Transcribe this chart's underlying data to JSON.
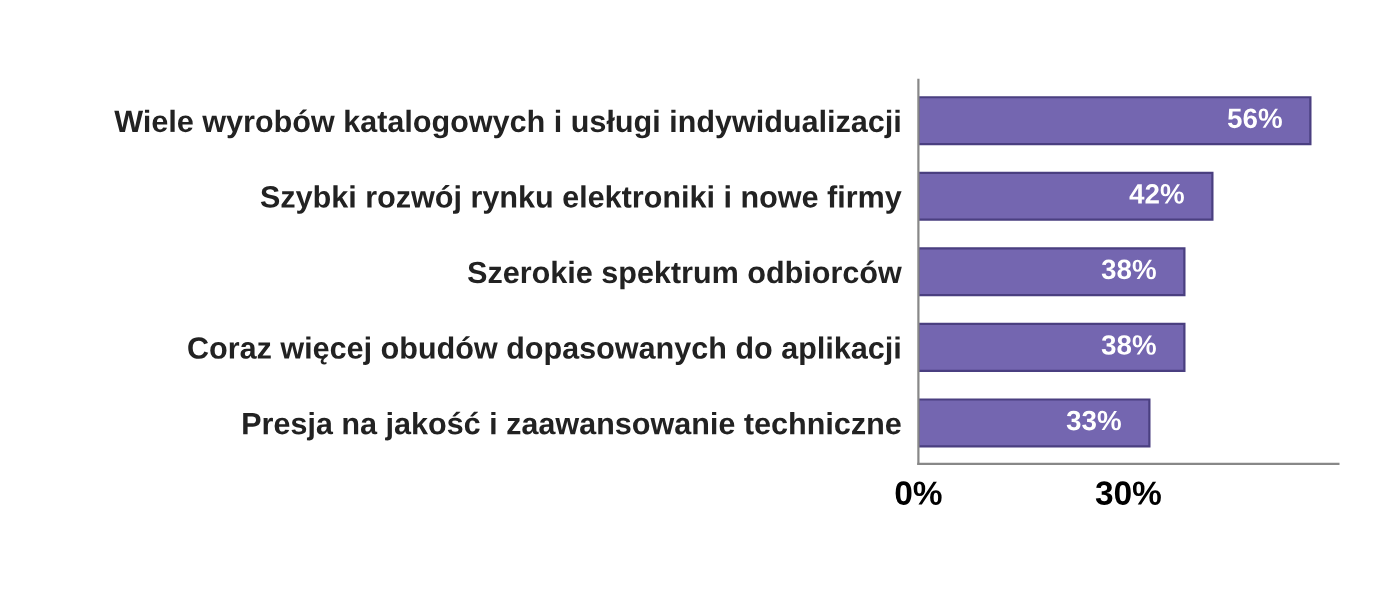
{
  "chart_data": {
    "type": "bar",
    "orientation": "horizontal",
    "categories": [
      "Wiele wyrobów katalogowych i usługi indywidualizacji",
      "Szybki rozwój rynku elektroniki i nowe firmy",
      "Szerokie spektrum odbiorców",
      "Coraz więcej obudów dopasowanych do aplikacji",
      "Presja na jakość i zaawansowanie techniczne"
    ],
    "values": [
      56,
      42,
      38,
      38,
      33
    ],
    "value_labels": [
      "56%",
      "42%",
      "38%",
      "38%",
      "33%"
    ],
    "color": "#7466b0",
    "xlim": [
      0,
      60
    ],
    "xticks": [
      {
        "value": 0,
        "label": "0%"
      },
      {
        "value": 30,
        "label": "30%"
      }
    ],
    "grid": false,
    "legend": false
  }
}
